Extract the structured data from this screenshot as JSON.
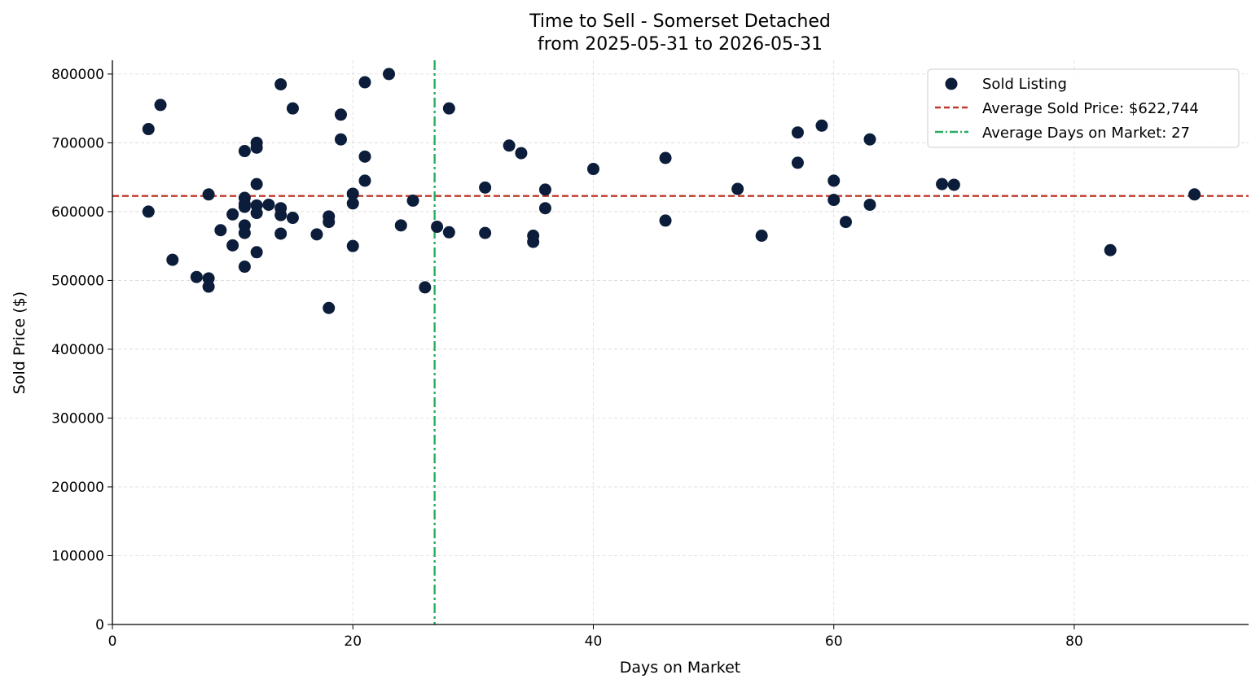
{
  "chart_data": {
    "type": "scatter",
    "title": "Time to Sell - Somerset Detached",
    "subtitle": "from 2025-05-31 to 2026-05-31",
    "xlabel": "Days on Market",
    "ylabel": "Sold Price ($)",
    "xlim": [
      0,
      94.5
    ],
    "ylim": [
      0,
      820000
    ],
    "x_ticks": [
      0,
      20,
      40,
      60,
      80
    ],
    "y_ticks": [
      0,
      100000,
      200000,
      300000,
      400000,
      500000,
      600000,
      700000,
      800000
    ],
    "grid": true,
    "legend_position": "top-right",
    "series": [
      {
        "name": "Sold Listing",
        "color": "#0b1d3a",
        "points": [
          {
            "x": 3,
            "y": 720000
          },
          {
            "x": 3,
            "y": 600000
          },
          {
            "x": 4,
            "y": 755000
          },
          {
            "x": 5,
            "y": 530000
          },
          {
            "x": 7,
            "y": 505000
          },
          {
            "x": 8,
            "y": 625000
          },
          {
            "x": 8,
            "y": 503000
          },
          {
            "x": 8,
            "y": 491000
          },
          {
            "x": 9,
            "y": 573000
          },
          {
            "x": 10,
            "y": 596000
          },
          {
            "x": 10,
            "y": 551000
          },
          {
            "x": 11,
            "y": 688000
          },
          {
            "x": 11,
            "y": 620000
          },
          {
            "x": 11,
            "y": 611000
          },
          {
            "x": 11,
            "y": 607000
          },
          {
            "x": 11,
            "y": 580000
          },
          {
            "x": 11,
            "y": 569000
          },
          {
            "x": 11,
            "y": 520000
          },
          {
            "x": 12,
            "y": 700000
          },
          {
            "x": 12,
            "y": 693000
          },
          {
            "x": 12,
            "y": 640000
          },
          {
            "x": 12,
            "y": 609000
          },
          {
            "x": 12,
            "y": 598000
          },
          {
            "x": 12,
            "y": 541000
          },
          {
            "x": 13,
            "y": 610000
          },
          {
            "x": 14,
            "y": 785000
          },
          {
            "x": 14,
            "y": 605000
          },
          {
            "x": 14,
            "y": 595000
          },
          {
            "x": 14,
            "y": 568000
          },
          {
            "x": 15,
            "y": 750000
          },
          {
            "x": 15,
            "y": 591000
          },
          {
            "x": 17,
            "y": 567000
          },
          {
            "x": 18,
            "y": 593000
          },
          {
            "x": 18,
            "y": 585000
          },
          {
            "x": 18,
            "y": 460000
          },
          {
            "x": 19,
            "y": 741000
          },
          {
            "x": 19,
            "y": 705000
          },
          {
            "x": 20,
            "y": 626000
          },
          {
            "x": 20,
            "y": 612000
          },
          {
            "x": 20,
            "y": 550000
          },
          {
            "x": 21,
            "y": 788000
          },
          {
            "x": 21,
            "y": 680000
          },
          {
            "x": 21,
            "y": 645000
          },
          {
            "x": 23,
            "y": 800000
          },
          {
            "x": 24,
            "y": 580000
          },
          {
            "x": 25,
            "y": 616000
          },
          {
            "x": 26,
            "y": 490000
          },
          {
            "x": 27,
            "y": 578000
          },
          {
            "x": 28,
            "y": 750000
          },
          {
            "x": 28,
            "y": 570000
          },
          {
            "x": 31,
            "y": 635000
          },
          {
            "x": 31,
            "y": 569000
          },
          {
            "x": 33,
            "y": 696000
          },
          {
            "x": 34,
            "y": 685000
          },
          {
            "x": 35,
            "y": 565000
          },
          {
            "x": 35,
            "y": 556000
          },
          {
            "x": 36,
            "y": 632000
          },
          {
            "x": 36,
            "y": 605000
          },
          {
            "x": 40,
            "y": 662000
          },
          {
            "x": 46,
            "y": 678000
          },
          {
            "x": 46,
            "y": 587000
          },
          {
            "x": 52,
            "y": 633000
          },
          {
            "x": 54,
            "y": 565000
          },
          {
            "x": 57,
            "y": 715000
          },
          {
            "x": 57,
            "y": 671000
          },
          {
            "x": 59,
            "y": 725000
          },
          {
            "x": 60,
            "y": 645000
          },
          {
            "x": 60,
            "y": 617000
          },
          {
            "x": 61,
            "y": 585000
          },
          {
            "x": 63,
            "y": 705000
          },
          {
            "x": 63,
            "y": 610000
          },
          {
            "x": 69,
            "y": 640000
          },
          {
            "x": 70,
            "y": 639000
          },
          {
            "x": 83,
            "y": 544000
          },
          {
            "x": 90,
            "y": 625000
          }
        ]
      }
    ],
    "reference_lines": [
      {
        "orientation": "horizontal",
        "value": 622744,
        "label": "Average Sold Price: $622,744",
        "color": "#c0392b",
        "style": "dashed"
      },
      {
        "orientation": "vertical",
        "value": 26.8,
        "label": "Average Days on Market: 27",
        "color": "#27ae60",
        "style": "dashdot"
      }
    ]
  }
}
